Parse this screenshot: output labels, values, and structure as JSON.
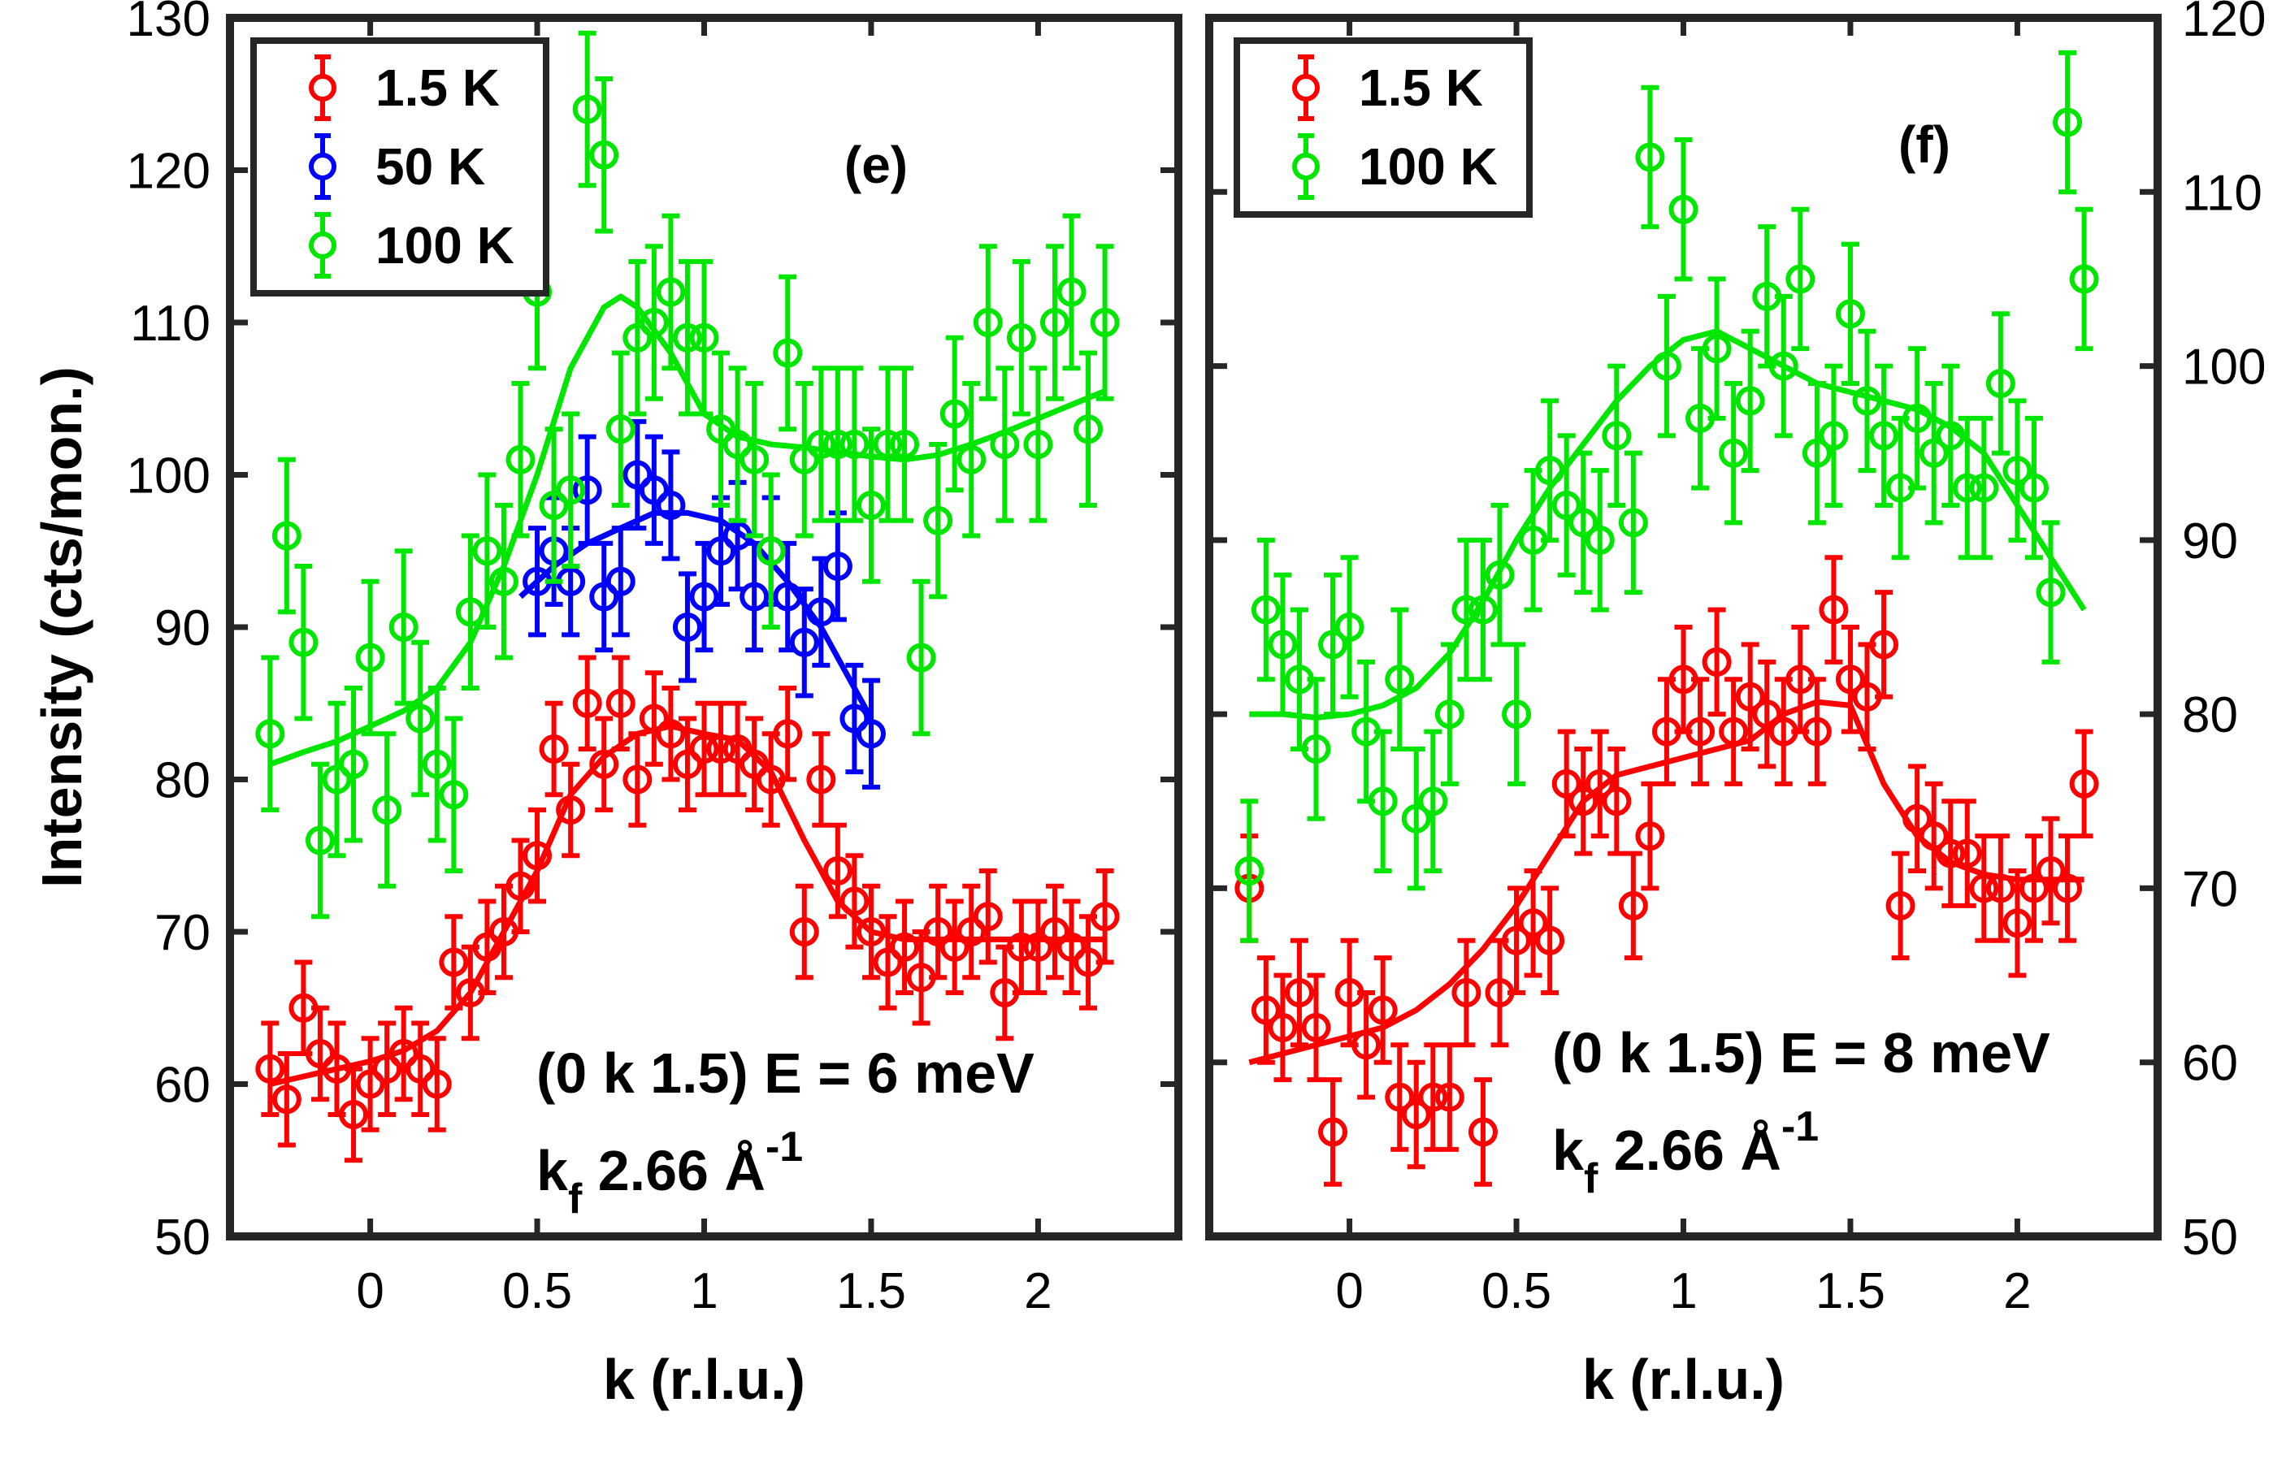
{
  "chart_data": [
    {
      "type": "scatter",
      "panel_label": "(e)",
      "xlabel": "k (r.l.u.)",
      "ylabel": "Intensity (cts/mon.)",
      "xlim": [
        -0.42,
        2.42
      ],
      "ylim": [
        50,
        130
      ],
      "xticks": [
        0,
        0.5,
        1,
        1.5,
        2
      ],
      "xtick_labels": [
        "0",
        "0.5",
        "1",
        "1.5",
        "2"
      ],
      "yticks": [
        50,
        60,
        70,
        80,
        90,
        100,
        110,
        120,
        130
      ],
      "ytick_labels": [
        "50",
        "60",
        "70",
        "80",
        "90",
        "100",
        "110",
        "120",
        "130"
      ],
      "y_axis_side": "left",
      "legend_position": "top-left",
      "annotation_line1": "(0 k 1.5)  E = 6 meV",
      "annotation_line2_base": "k",
      "annotation_line2_sub": "f",
      "annotation_line2_rest": " 2.66 Å",
      "annotation_line2_sup": "-1",
      "series": [
        {
          "name": "1.5 K",
          "color": "#ff0000",
          "x": [
            -0.3,
            -0.25,
            -0.2,
            -0.15,
            -0.1,
            -0.05,
            0,
            0.05,
            0.1,
            0.15,
            0.2,
            0.25,
            0.3,
            0.35,
            0.4,
            0.45,
            0.5,
            0.55,
            0.6,
            0.65,
            0.7,
            0.75,
            0.8,
            0.85,
            0.9,
            0.95,
            1,
            1.05,
            1.1,
            1.15,
            1.2,
            1.25,
            1.3,
            1.35,
            1.4,
            1.45,
            1.5,
            1.55,
            1.6,
            1.65,
            1.7,
            1.75,
            1.8,
            1.85,
            1.9,
            1.95,
            2,
            2.05,
            2.1,
            2.15,
            2.2
          ],
          "y": [
            61,
            59,
            65,
            62,
            61,
            58,
            60,
            61,
            62,
            61,
            60,
            68,
            66,
            69,
            70,
            73,
            75,
            82,
            78,
            85,
            81,
            85,
            80,
            84,
            83,
            81,
            82,
            82,
            82,
            81,
            80,
            83,
            70,
            80,
            74,
            72,
            70,
            68,
            69,
            67,
            70,
            69,
            70,
            71,
            66,
            69,
            69,
            70,
            69,
            68,
            71
          ],
          "err": [
            3,
            3,
            3,
            3,
            3,
            3,
            3,
            3,
            3,
            3,
            3,
            3,
            3,
            3,
            3,
            3,
            3,
            3,
            3,
            3,
            3,
            3,
            3,
            3,
            3,
            3,
            3,
            3,
            3,
            3,
            3,
            3,
            3,
            3,
            3,
            3,
            3,
            3,
            3,
            3,
            3,
            3,
            3,
            3,
            3,
            3,
            3,
            3,
            3,
            3,
            3
          ],
          "fit_x": [
            -0.3,
            -0.2,
            -0.1,
            0,
            0.1,
            0.2,
            0.3,
            0.4,
            0.5,
            0.6,
            0.7,
            0.8,
            0.9,
            1,
            1.1,
            1.2,
            1.3,
            1.4,
            1.5,
            1.6,
            1.7,
            1.8,
            1.9,
            2,
            2.1,
            2.2
          ],
          "fit_y": [
            60,
            60.5,
            61,
            61.5,
            62.2,
            63.5,
            66,
            70,
            74,
            79,
            81.5,
            83,
            83.5,
            83,
            82.6,
            80.5,
            76,
            72,
            70,
            69.5,
            69.5,
            69.5,
            69.5,
            69.5,
            69.5,
            69.5
          ]
        },
        {
          "name": "50 K",
          "color": "#0000ff",
          "x": [
            0.5,
            0.55,
            0.6,
            0.65,
            0.7,
            0.75,
            0.8,
            0.85,
            0.9,
            0.95,
            1,
            1.05,
            1.1,
            1.15,
            1.2,
            1.25,
            1.3,
            1.35,
            1.4,
            1.45,
            1.5
          ],
          "y": [
            93,
            95,
            93,
            99,
            92,
            93,
            100,
            99,
            98,
            90,
            92,
            95,
            96,
            92,
            95,
            92,
            89,
            91,
            94,
            84,
            83
          ],
          "err": [
            3.5,
            3.5,
            3.5,
            3.5,
            3.5,
            3.5,
            3.5,
            3.5,
            3.5,
            3.5,
            3.5,
            3.5,
            3.5,
            3.5,
            3.5,
            3.5,
            3.5,
            3.5,
            3.5,
            3.5,
            3.5
          ],
          "fit_x": [
            0.45,
            0.55,
            0.65,
            0.75,
            0.85,
            0.95,
            1.05,
            1.15,
            1.25,
            1.35,
            1.45,
            1.5
          ],
          "fit_y": [
            92,
            94,
            95.5,
            96.5,
            97.5,
            97.5,
            97,
            95.5,
            93,
            90,
            86,
            84
          ]
        },
        {
          "name": "100 K",
          "color": "#00e600",
          "x": [
            -0.3,
            -0.25,
            -0.2,
            -0.15,
            -0.1,
            -0.05,
            0,
            0.05,
            0.1,
            0.15,
            0.2,
            0.25,
            0.3,
            0.35,
            0.4,
            0.45,
            0.5,
            0.55,
            0.6,
            0.65,
            0.7,
            0.75,
            0.8,
            0.85,
            0.9,
            0.95,
            1,
            1.05,
            1.1,
            1.15,
            1.2,
            1.25,
            1.3,
            1.35,
            1.4,
            1.45,
            1.5,
            1.55,
            1.6,
            1.65,
            1.7,
            1.75,
            1.8,
            1.85,
            1.9,
            1.95,
            2,
            2.05,
            2.1,
            2.15,
            2.2
          ],
          "y": [
            83,
            96,
            89,
            76,
            80,
            81,
            88,
            78,
            90,
            84,
            81,
            79,
            91,
            95,
            93,
            101,
            112,
            98,
            99,
            124,
            121,
            103,
            109,
            110,
            112,
            109,
            109,
            103,
            102,
            101,
            95,
            108,
            101,
            102,
            102,
            102,
            98,
            102,
            102,
            88,
            97,
            104,
            101,
            110,
            102,
            109,
            102,
            110,
            112,
            103,
            110
          ],
          "err": [
            5,
            5,
            5,
            5,
            5,
            5,
            5,
            5,
            5,
            5,
            5,
            5,
            5,
            5,
            5,
            5,
            5,
            5,
            5,
            5,
            5,
            5,
            5,
            5,
            5,
            5,
            5,
            5,
            5,
            5,
            5,
            5,
            5,
            5,
            5,
            5,
            5,
            5,
            5,
            5,
            5,
            5,
            5,
            5,
            5,
            5,
            5,
            5,
            5,
            5,
            5
          ],
          "fit_x": [
            -0.3,
            -0.2,
            -0.1,
            0,
            0.1,
            0.2,
            0.3,
            0.4,
            0.5,
            0.6,
            0.7,
            0.75,
            0.8,
            0.9,
            1,
            1.1,
            1.2,
            1.3,
            1.4,
            1.5,
            1.6,
            1.7,
            1.8,
            1.9,
            2,
            2.1,
            2.2
          ],
          "fit_y": [
            81,
            81.8,
            82.5,
            83.5,
            84.5,
            86,
            89,
            94,
            100,
            107,
            111,
            111.7,
            111,
            108,
            104,
            102.5,
            102,
            101.8,
            101.5,
            101.2,
            101,
            101.3,
            102,
            102.8,
            103.7,
            104.6,
            105.5
          ]
        }
      ]
    },
    {
      "type": "scatter",
      "panel_label": "(f)",
      "xlabel": "k (r.l.u.)",
      "ylabel": "",
      "xlim": [
        -0.42,
        2.42
      ],
      "ylim": [
        50,
        120
      ],
      "xticks": [
        0,
        0.5,
        1,
        1.5,
        2
      ],
      "xtick_labels": [
        "0",
        "0.5",
        "1",
        "1.5",
        "2"
      ],
      "yticks": [
        50,
        60,
        70,
        80,
        90,
        100,
        110,
        120
      ],
      "ytick_labels": [
        "50",
        "60",
        "70",
        "80",
        "90",
        "100",
        "110",
        "120"
      ],
      "y_axis_side": "right",
      "legend_position": "top-left",
      "annotation_line1": "(0 k 1.5)  E = 8 meV",
      "annotation_line2_base": "k",
      "annotation_line2_sub": "f",
      "annotation_line2_rest": " 2.66 Å",
      "annotation_line2_sup": "-1",
      "series": [
        {
          "name": "1.5 K",
          "color": "#ff0000",
          "x": [
            -0.3,
            -0.25,
            -0.2,
            -0.15,
            -0.1,
            -0.05,
            0,
            0.05,
            0.1,
            0.15,
            0.2,
            0.25,
            0.3,
            0.35,
            0.4,
            0.45,
            0.5,
            0.55,
            0.6,
            0.65,
            0.7,
            0.75,
            0.8,
            0.85,
            0.9,
            0.95,
            1,
            1.05,
            1.1,
            1.15,
            1.2,
            1.25,
            1.3,
            1.35,
            1.4,
            1.45,
            1.5,
            1.55,
            1.6,
            1.65,
            1.7,
            1.75,
            1.8,
            1.85,
            1.9,
            1.95,
            2,
            2.05,
            2.1,
            2.15,
            2.2
          ],
          "y": [
            70,
            63,
            62,
            64,
            62,
            56,
            64,
            61,
            63,
            58,
            57,
            58,
            58,
            64,
            56,
            64,
            67,
            68,
            67,
            76,
            75,
            76,
            75,
            69,
            73,
            79,
            82,
            79,
            83,
            79,
            81,
            80,
            79,
            82,
            79,
            86,
            82,
            81,
            84,
            69,
            74,
            73,
            72,
            72,
            70,
            70,
            68,
            70,
            71,
            70,
            76
          ],
          "err": [
            3,
            3,
            3,
            3,
            3,
            3,
            3,
            3,
            3,
            3,
            3,
            3,
            3,
            3,
            3,
            3,
            3,
            3,
            3,
            3,
            3,
            3,
            3,
            3,
            3,
            3,
            3,
            3,
            3,
            3,
            3,
            3,
            3,
            3,
            3,
            3,
            3,
            3,
            3,
            3,
            3,
            3,
            3,
            3,
            3,
            3,
            3,
            3,
            3,
            3,
            3
          ],
          "fit_x": [
            -0.3,
            -0.2,
            -0.1,
            0,
            0.1,
            0.2,
            0.3,
            0.4,
            0.5,
            0.6,
            0.7,
            0.8,
            0.9,
            1,
            1.1,
            1.2,
            1.3,
            1.4,
            1.5,
            1.6,
            1.7,
            1.8,
            1.9,
            2,
            2.1,
            2.2
          ],
          "fit_y": [
            60,
            60.5,
            61,
            61.5,
            62,
            63,
            64.5,
            66.5,
            69,
            72,
            75,
            76.5,
            77,
            77.5,
            78,
            78.5,
            80,
            80.7,
            80.5,
            76,
            73,
            71.5,
            70.8,
            70.5,
            70.5,
            70.5
          ]
        },
        {
          "name": "100 K",
          "color": "#00e600",
          "x": [
            -0.3,
            -0.25,
            -0.2,
            -0.15,
            -0.1,
            -0.05,
            0,
            0.05,
            0.1,
            0.15,
            0.2,
            0.25,
            0.3,
            0.35,
            0.4,
            0.45,
            0.5,
            0.55,
            0.6,
            0.65,
            0.7,
            0.75,
            0.8,
            0.85,
            0.9,
            0.95,
            1,
            1.05,
            1.1,
            1.15,
            1.2,
            1.25,
            1.3,
            1.35,
            1.4,
            1.45,
            1.5,
            1.55,
            1.6,
            1.65,
            1.7,
            1.75,
            1.8,
            1.85,
            1.9,
            1.95,
            2,
            2.05,
            2.1,
            2.15,
            2.2
          ],
          "y": [
            71,
            86,
            84,
            82,
            78,
            84,
            85,
            79,
            75,
            82,
            74,
            75,
            80,
            86,
            86,
            88,
            80,
            90,
            94,
            92,
            91,
            90,
            96,
            91,
            112,
            100,
            109,
            97,
            101,
            95,
            98,
            104,
            100,
            105,
            95,
            96,
            103,
            98,
            96,
            93,
            97,
            95,
            96,
            93,
            93,
            99,
            94,
            93,
            87,
            114,
            105
          ],
          "err": [
            4,
            4,
            4,
            4,
            4,
            4,
            4,
            4,
            4,
            4,
            4,
            4,
            4,
            4,
            4,
            4,
            4,
            4,
            4,
            4,
            4,
            4,
            4,
            4,
            4,
            4,
            4,
            4,
            4,
            4,
            4,
            4,
            4,
            4,
            4,
            4,
            4,
            4,
            4,
            4,
            4,
            4,
            4,
            4,
            4,
            4,
            4,
            4,
            4,
            4,
            4
          ],
          "fit_x": [
            -0.3,
            -0.2,
            -0.1,
            0,
            0.1,
            0.2,
            0.3,
            0.4,
            0.5,
            0.6,
            0.7,
            0.8,
            0.9,
            1,
            1.1,
            1.2,
            1.3,
            1.4,
            1.5,
            1.6,
            1.7,
            1.8,
            1.9,
            2,
            2.1,
            2.2
          ],
          "fit_y": [
            80,
            80,
            79.8,
            80,
            80.5,
            81.5,
            83.5,
            86.5,
            90,
            93,
            95.5,
            98,
            100,
            101.5,
            102,
            101,
            100,
            99,
            98.5,
            98,
            97.5,
            96.5,
            95,
            92,
            89,
            86
          ]
        }
      ]
    }
  ]
}
